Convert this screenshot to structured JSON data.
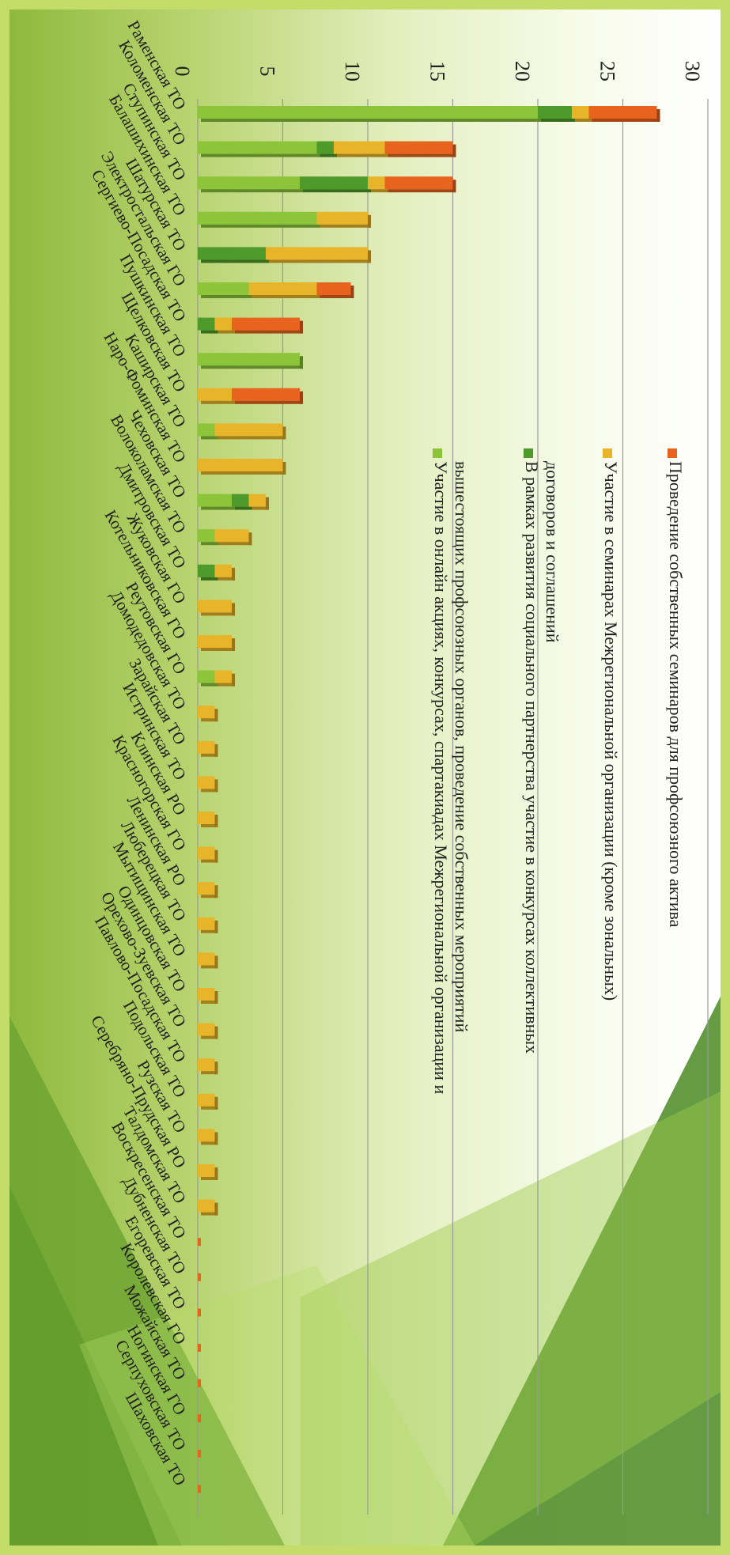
{
  "chart_data": {
    "type": "bar",
    "stacked": true,
    "orientation": "horizontal-bars, page rotated 90°",
    "title": "",
    "xlabel": "",
    "ylabel": "",
    "ylim": [
      0,
      30
    ],
    "ticks": [
      "0",
      "5",
      "10",
      "15",
      "20",
      "25",
      "30"
    ],
    "grid": true,
    "legend_position": "top",
    "categories": [
      "Раменская ТО",
      "Коломенская ТО",
      "Ступинская ТО",
      "Балашихинская ТО",
      "Шатурская ТО",
      "Электростальская ГО",
      "Сергиево-Посадская ТО",
      "Пушкинская ТО",
      "Щелковская ТО",
      "Каширская ТО",
      "Наро-Фоминская ТО",
      "Чеховская ТО",
      "Волоколамская ТО",
      "Дмитровская ТО",
      "Жуковская ГО",
      "Котельниковская ГО",
      "Реутовская ГО",
      "Домодедовская ТО",
      "Зарайская ТО",
      "Истринская ТО",
      "Клинская РО",
      "Красногорская ГО",
      "Ленинская РО",
      "Люберецкая ТО",
      "Мытищинская ТО",
      "Одинцовская ТО",
      "Орехово-Зуевская ТО",
      "Павлово-Посадская ТО",
      "Подольская ТО",
      "Рузская ТО",
      "Серебряно-Прудская РО",
      "Талдомская ТО",
      "Воскресенская ТО",
      "Дубненская ТО",
      "Егоревская ТО",
      "Королевская ГО",
      "Можайская ТО",
      "Ногинская ГО",
      "Серпуховская ТО",
      "Шаховская ТО"
    ],
    "series": [
      {
        "name": "Участие в онлайн акциях, конкурсах, спартакиадах Межрегиональной организации и вышестоящих профсоюзных органов, проведение собственных мероприятий",
        "color": "#8cc43a",
        "values": [
          20,
          7,
          6,
          7,
          0,
          3,
          0,
          6,
          0,
          1,
          0,
          2,
          1,
          0,
          0,
          0,
          1,
          0,
          0,
          0,
          0,
          0,
          0,
          0,
          0,
          0,
          0,
          0,
          0,
          0,
          0,
          0,
          0,
          0,
          0,
          0,
          0,
          0,
          0,
          0
        ]
      },
      {
        "name": "В рамках развития социального партнерства участие в конкурсах коллективных договоров и соглашений",
        "color": "#4e9a2a",
        "values": [
          2,
          1,
          4,
          0,
          4,
          0,
          1,
          0,
          0,
          0,
          0,
          1,
          0,
          1,
          0,
          0,
          0,
          0,
          0,
          0,
          0,
          0,
          0,
          0,
          0,
          0,
          0,
          0,
          0,
          0,
          0,
          0,
          0,
          0,
          0,
          0,
          0,
          0,
          0,
          0
        ]
      },
      {
        "name": "Участие в семинарах Межрегиональной организации (кроме зональных)",
        "color": "#e8b52a",
        "values": [
          1,
          3,
          1,
          3,
          6,
          4,
          1,
          0,
          2,
          4,
          5,
          1,
          2,
          1,
          2,
          2,
          1,
          1,
          1,
          1,
          1,
          1,
          1,
          1,
          1,
          1,
          1,
          1,
          1,
          1,
          1,
          1,
          0,
          0,
          0,
          0,
          0,
          0,
          0,
          0
        ]
      },
      {
        "name": "Проведение собственных семинаров для профсоюзного актива",
        "color": "#e8641e",
        "values": [
          4,
          4,
          4,
          0,
          0,
          2,
          4,
          0,
          4,
          0,
          0,
          0,
          0,
          0,
          0,
          0,
          0,
          0,
          0,
          0,
          0,
          0,
          0,
          0,
          0,
          0,
          0,
          0,
          0,
          0,
          0,
          0,
          0,
          0,
          0,
          0,
          0,
          0,
          0,
          0
        ]
      }
    ]
  }
}
